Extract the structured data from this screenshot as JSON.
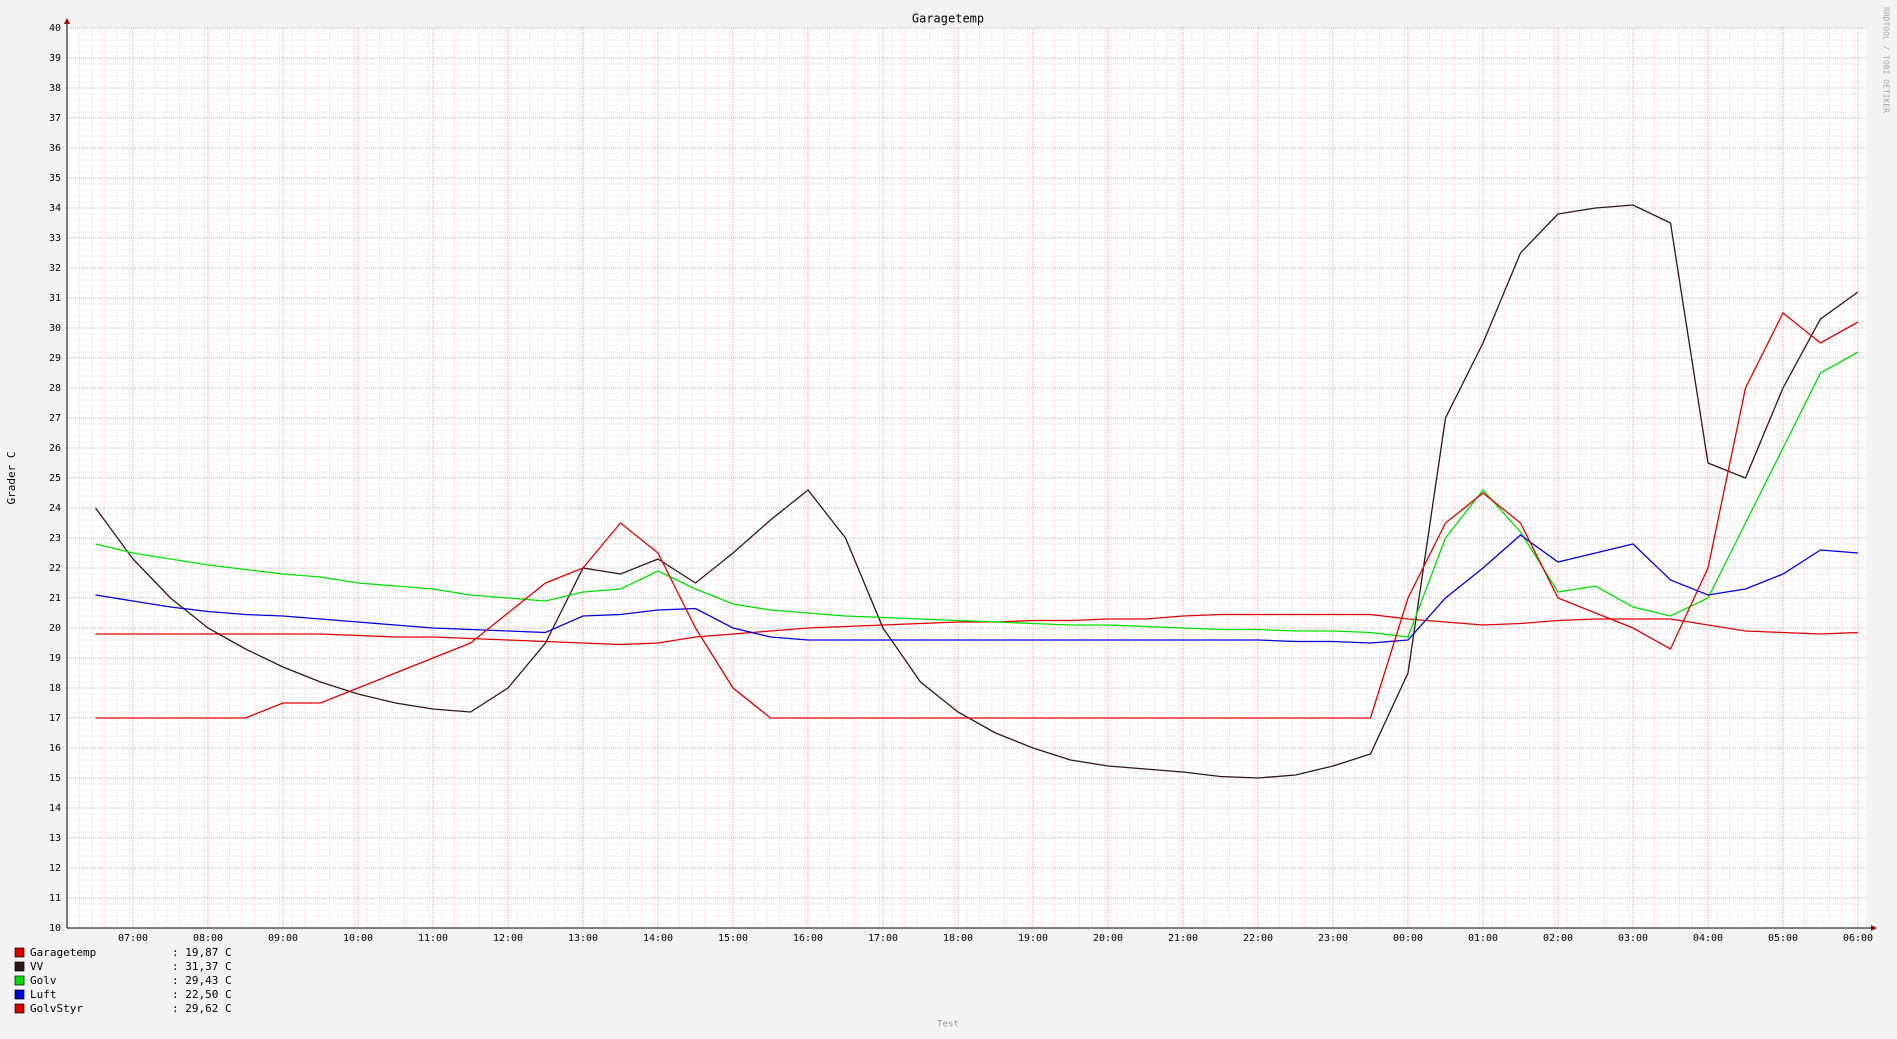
{
  "chart_data": {
    "type": "line",
    "title": "Garagetemp",
    "y_label": "Grader C",
    "footer": "Test",
    "watermark": "RRDTOOL / TOBI OETIKER",
    "categories": [
      null,
      "07:00",
      null,
      "08:00",
      null,
      "09:00",
      null,
      "10:00",
      null,
      "11:00",
      null,
      "12:00",
      null,
      "13:00",
      null,
      "14:00",
      null,
      "15:00",
      null,
      "16:00",
      null,
      "17:00",
      null,
      "18:00",
      null,
      "19:00",
      null,
      "20:00",
      null,
      "21:00",
      null,
      "22:00",
      null,
      "23:00",
      null,
      "00:00",
      null,
      "01:00",
      null,
      "02:00",
      null,
      "03:00",
      null,
      "04:00",
      null,
      "05:00",
      null,
      "06:00"
    ],
    "ylim": [
      10,
      40
    ],
    "yticks": [
      10,
      11,
      12,
      13,
      14,
      15,
      16,
      17,
      18,
      19,
      20,
      21,
      22,
      23,
      24,
      25,
      26,
      27,
      28,
      29,
      30,
      31,
      32,
      33,
      34,
      35,
      36,
      37,
      38,
      39,
      40
    ],
    "grid": true,
    "series": [
      {
        "name": "Garagetemp",
        "color": "#e00000",
        "current": ": 19,87 C",
        "values": [
          19.8,
          19.8,
          19.8,
          19.8,
          19.8,
          19.8,
          19.8,
          19.75,
          19.7,
          19.7,
          19.65,
          19.6,
          19.55,
          19.5,
          19.45,
          19.5,
          19.7,
          19.8,
          19.9,
          20.0,
          20.05,
          20.1,
          20.15,
          20.2,
          20.2,
          20.25,
          20.25,
          20.3,
          20.3,
          20.4,
          20.45,
          20.45,
          20.45,
          20.45,
          20.45,
          20.3,
          20.2,
          20.1,
          20.15,
          20.25,
          20.3,
          20.3,
          20.3,
          20.1,
          19.9,
          19.85,
          19.8,
          19.85
        ]
      },
      {
        "name": "VV",
        "color": "#301818",
        "current": ": 31,37 C",
        "values": [
          24,
          22.3,
          21,
          20,
          19.3,
          18.7,
          18.2,
          17.8,
          17.5,
          17.3,
          17.2,
          18,
          19.5,
          22,
          21.8,
          22.3,
          21.5,
          22.5,
          23.6,
          24.6,
          23,
          20,
          18.2,
          17.2,
          16.5,
          16,
          15.6,
          15.4,
          15.3,
          15.2,
          15.05,
          15,
          15.1,
          15.4,
          15.8,
          18.5,
          27,
          29.5,
          32.5,
          33.8,
          34,
          34.1,
          33.5,
          25.5,
          25,
          28,
          30.3,
          31.2
        ]
      },
      {
        "name": "Golv",
        "color": "#00e000",
        "current": ": 29,43 C",
        "values": [
          22.8,
          22.5,
          22.3,
          22.1,
          21.95,
          21.8,
          21.7,
          21.5,
          21.4,
          21.3,
          21.1,
          21,
          20.9,
          21.2,
          21.3,
          21.9,
          21.3,
          20.8,
          20.6,
          20.5,
          20.4,
          20.35,
          20.3,
          20.25,
          20.2,
          20.15,
          20.1,
          20.1,
          20.05,
          20,
          19.95,
          19.95,
          19.9,
          19.9,
          19.85,
          19.7,
          23,
          24.6,
          23.2,
          21.2,
          21.4,
          20.7,
          20.4,
          21,
          23.5,
          26,
          28.5,
          29.2
        ]
      },
      {
        "name": "Luft",
        "color": "#0000e0",
        "current": ": 22,50 C",
        "values": [
          21.1,
          20.9,
          20.7,
          20.55,
          20.45,
          20.4,
          20.3,
          20.2,
          20.1,
          20,
          19.95,
          19.9,
          19.85,
          20.4,
          20.45,
          20.6,
          20.65,
          20,
          19.7,
          19.6,
          19.6,
          19.6,
          19.6,
          19.6,
          19.6,
          19.6,
          19.6,
          19.6,
          19.6,
          19.6,
          19.6,
          19.6,
          19.55,
          19.55,
          19.5,
          19.6,
          21,
          22,
          23.1,
          22.2,
          22.5,
          22.8,
          21.6,
          21.1,
          21.3,
          21.8,
          22.6,
          22.5
        ]
      },
      {
        "name": "GolvStyr",
        "color": "#e00000",
        "current": ": 29,62 C",
        "values": [
          17,
          17,
          17,
          17,
          17,
          17.5,
          17.5,
          18,
          18.5,
          19,
          19.5,
          20.5,
          21.5,
          22,
          23.5,
          22.5,
          20,
          18,
          17,
          17,
          17,
          17,
          17,
          17,
          17,
          17,
          17,
          17,
          17,
          17,
          17,
          17,
          17,
          17,
          17,
          21,
          23.5,
          24.5,
          23.5,
          21,
          20.5,
          20,
          19.3,
          22,
          28,
          30.5,
          29.5,
          30.2
        ]
      }
    ]
  }
}
